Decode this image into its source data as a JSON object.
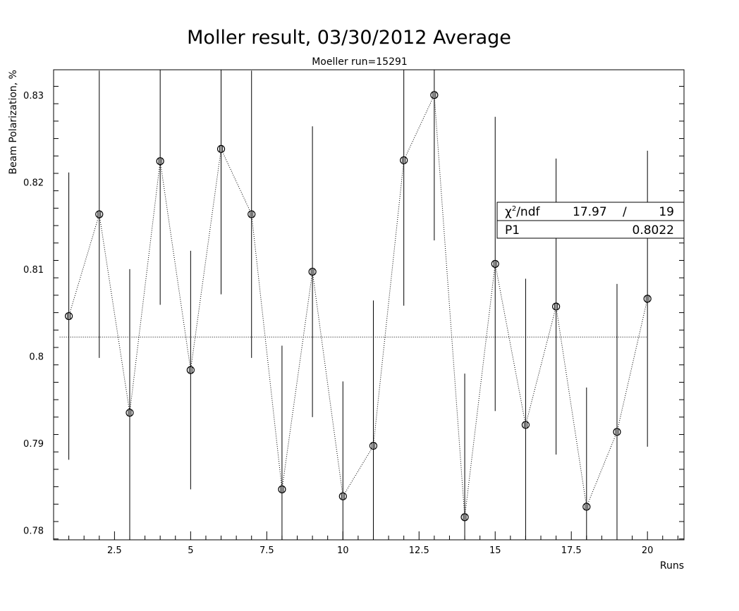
{
  "chart_data": {
    "type": "scatter",
    "title": "Moller result, 03/30/2012 Average",
    "subtitle": "Moeller run=15291",
    "xlabel": "Runs",
    "ylabel": "Beam Polarization, %",
    "xlim": [
      0.5,
      21.2
    ],
    "ylim": [
      0.7789,
      0.8329
    ],
    "x_ticks": [
      2.5,
      5,
      7.5,
      10,
      12.5,
      15,
      17.5,
      20
    ],
    "x_tick_labels": [
      "2.5",
      "5",
      "7.5",
      "10",
      "12.5",
      "15",
      "17.5",
      "20"
    ],
    "y_ticks": [
      0.78,
      0.79,
      0.8,
      0.81,
      0.82,
      0.83
    ],
    "y_tick_labels": [
      "0.78",
      "0.79",
      "0.8",
      "0.81",
      "0.82",
      "0.83"
    ],
    "grid": false,
    "connecting_line": "dotted",
    "fit_line_value": 0.8022,
    "series": [
      {
        "x": [
          1,
          2,
          3,
          4,
          5,
          6,
          7,
          8,
          9,
          10,
          11,
          12,
          13,
          14,
          15,
          16,
          17,
          18,
          19,
          20
        ],
        "y": [
          0.8046,
          0.8163,
          0.7935,
          0.8224,
          0.7984,
          0.8238,
          0.8163,
          0.7847,
          0.8097,
          0.7839,
          0.7897,
          0.8225,
          0.83,
          0.7815,
          0.8106,
          0.7921,
          0.8057,
          0.7827,
          0.7913,
          0.8066
        ],
        "error": [
          0.0165,
          0.0165,
          0.0165,
          0.0165,
          0.0137,
          0.0167,
          0.0165,
          0.0165,
          0.0167,
          0.0132,
          0.0167,
          0.0167,
          0.0167,
          0.0165,
          0.0169,
          0.0168,
          0.017,
          0.0137,
          0.017,
          0.017
        ]
      }
    ],
    "stats_box": {
      "chi2_symbol": "χ",
      "chi2_sup": "2",
      "chi2_label": "/ndf",
      "chi2_value": "17.97",
      "slash": "/",
      "ndf": "19",
      "p1_label": "P1",
      "p1_value": "0.8022",
      "position": "right"
    },
    "colors": {
      "line": "#000000",
      "background": "#ffffff"
    }
  }
}
